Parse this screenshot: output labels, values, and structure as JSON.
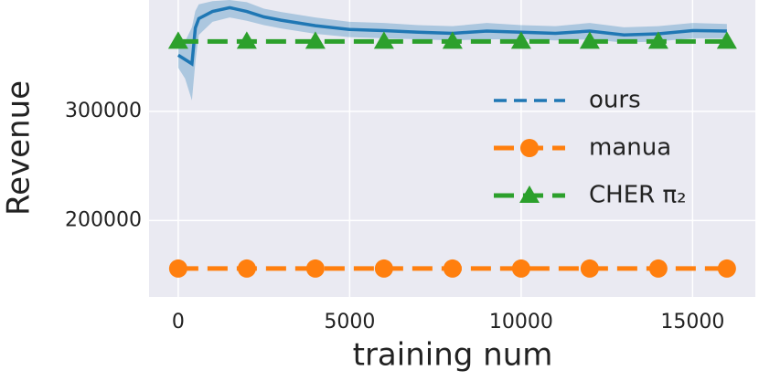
{
  "chart_data": {
    "type": "line",
    "xlabel": "training num",
    "ylabel": "Revenue",
    "xlim": [
      -850,
      16830
    ],
    "ylim": [
      130000,
      402000
    ],
    "xticks": [
      0,
      5000,
      10000,
      15000
    ],
    "yticks": [
      200000,
      300000
    ],
    "grid": true,
    "background": "#eaeaf2",
    "legend": "center right",
    "series": [
      {
        "name": "ours",
        "color": "#1f77b4",
        "style": "dashed",
        "x": [
          0,
          200,
          400,
          500,
          600,
          1000,
          1500,
          2000,
          2500,
          3000,
          4000,
          5000,
          6000,
          7000,
          8000,
          9000,
          10000,
          11000,
          12000,
          13000,
          14000,
          15000,
          16000
        ],
        "values": [
          351500,
          347500,
          343500,
          376500,
          385000,
          391500,
          395000,
          391500,
          386500,
          383500,
          378500,
          375000,
          374000,
          372500,
          371500,
          373500,
          372500,
          371500,
          373500,
          370000,
          371000,
          374000,
          373500
        ],
        "lower": [
          340000,
          330000,
          310000,
          345000,
          370000,
          382000,
          386000,
          383000,
          379000,
          376000,
          371000,
          368000,
          367000,
          366000,
          365000,
          366000,
          366000,
          365000,
          366000,
          363000,
          364000,
          367000,
          367000
        ],
        "upper": [
          362000,
          364000,
          377000,
          392000,
          398000,
          401000,
          402000,
          400000,
          394000,
          391000,
          386000,
          382000,
          381000,
          379000,
          378000,
          381000,
          379000,
          378000,
          381000,
          377000,
          378000,
          381000,
          380000
        ]
      },
      {
        "name": "manua",
        "color": "#ff7f0e",
        "style": "dashed",
        "marker": "circle",
        "x": [
          0,
          2000,
          4000,
          6000,
          8000,
          10000,
          12000,
          14000,
          16000
        ],
        "values": [
          156000,
          156000,
          156000,
          156000,
          156000,
          156000,
          156000,
          156000,
          156000
        ]
      },
      {
        "name": "CHER π₂",
        "color": "#2ca02c",
        "style": "dashed",
        "marker": "triangle",
        "x": [
          0,
          2000,
          4000,
          6000,
          8000,
          10000,
          12000,
          14000,
          16000
        ],
        "values": [
          364000,
          364000,
          364000,
          364000,
          364000,
          364000,
          364000,
          364000,
          364000
        ]
      }
    ]
  }
}
